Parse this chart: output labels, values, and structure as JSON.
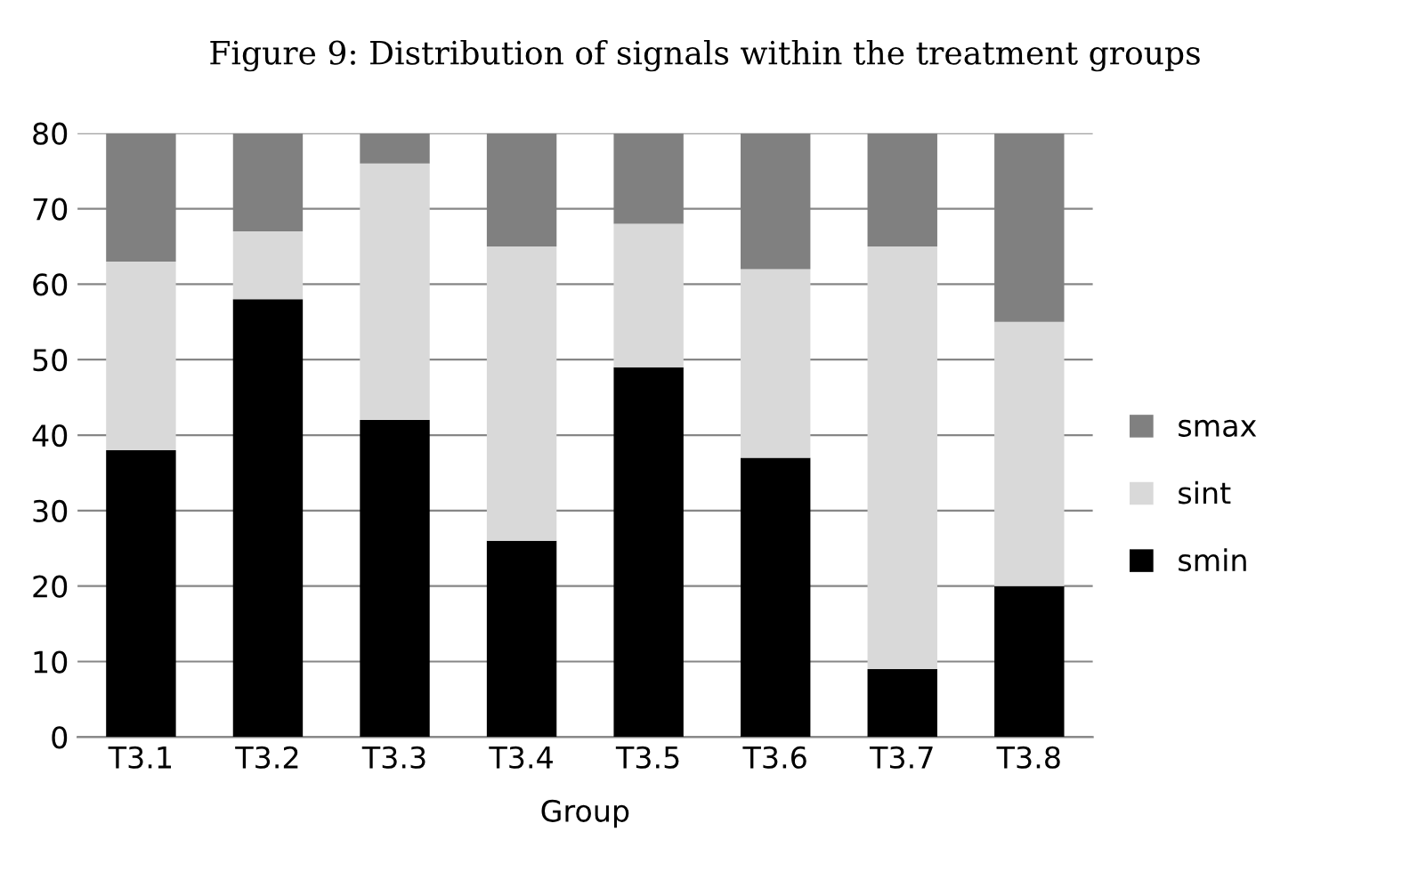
{
  "chart_data": {
    "type": "bar",
    "stacked": true,
    "title": "Figure 9: Distribution of signals within the treatment groups",
    "xlabel": "Group",
    "categories": [
      "T3.1",
      "T3.2",
      "T3.3",
      "T3.4",
      "T3.5",
      "T3.6",
      "T3.7",
      "T3.8"
    ],
    "series": [
      {
        "name": "smin",
        "color": "#000000",
        "values": [
          38,
          58,
          42,
          26,
          49,
          37,
          9,
          20
        ]
      },
      {
        "name": "sint",
        "color": "#d9d9d9",
        "values": [
          25,
          9,
          34,
          39,
          19,
          25,
          56,
          35
        ]
      },
      {
        "name": "smax",
        "color": "#808080",
        "values": [
          17,
          13,
          4,
          15,
          12,
          18,
          15,
          25
        ]
      }
    ],
    "ylim": [
      0,
      80
    ],
    "yticks": [
      0,
      10,
      20,
      30,
      40,
      50,
      60,
      70,
      80
    ],
    "grid": "y",
    "legend": "right"
  }
}
